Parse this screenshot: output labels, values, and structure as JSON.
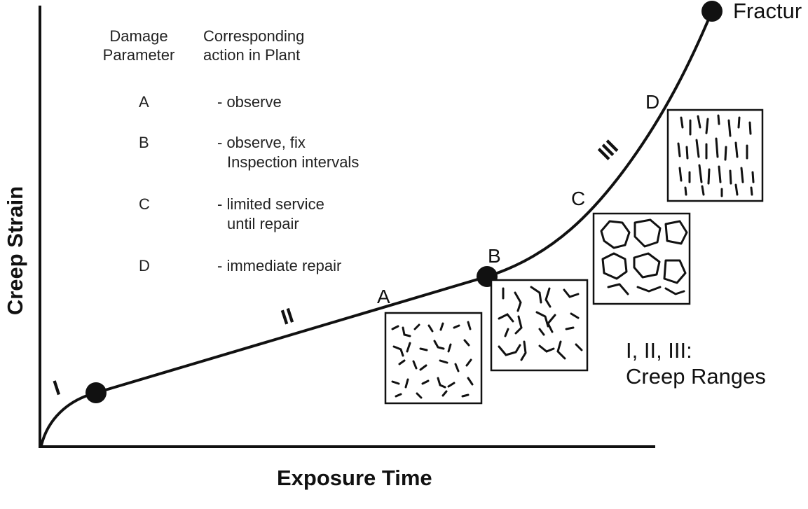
{
  "axes": {
    "y_label": "Creep Strain",
    "x_label": "Exposure Time"
  },
  "end_label": "Fractur",
  "table": {
    "col1_header": [
      "Damage",
      "Parameter"
    ],
    "col2_header": [
      "Corresponding",
      "action in Plant"
    ],
    "rows": [
      {
        "param": "A",
        "action": [
          "- observe"
        ]
      },
      {
        "param": "B",
        "action": [
          "- observe, fix",
          "Inspection intervals"
        ]
      },
      {
        "param": "C",
        "action": [
          "- limited service",
          "until repair"
        ]
      },
      {
        "param": "D",
        "action": [
          "- immediate repair"
        ]
      }
    ]
  },
  "ranges": {
    "stage1": "I",
    "stage2": "II",
    "stage3": "III"
  },
  "points": {
    "a": "A",
    "b": "B",
    "c": "C",
    "d": "D"
  },
  "legend": {
    "line1": "I, II, III:",
    "line2": "Creep Ranges"
  },
  "colors": {
    "ink": "#111111",
    "background": "#ffffff"
  }
}
